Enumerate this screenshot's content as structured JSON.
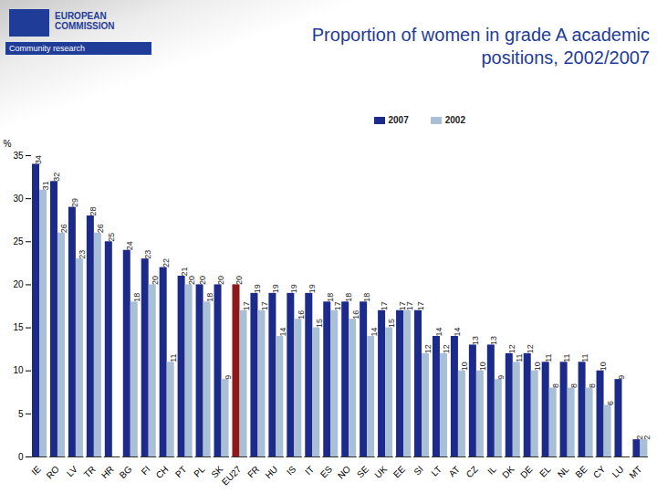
{
  "logo_text": [
    "EUROPEAN COMMISSION",
    "Community research"
  ],
  "chart_data": {
    "type": "bar",
    "title": "Proportion of women in grade A academic positions, 2002/2007",
    "y_label": "%",
    "categories": [
      "IE",
      "RO",
      "LV",
      "TR",
      "HR",
      "BG",
      "FI",
      "CH",
      "PT",
      "PL",
      "SK",
      "EU27",
      "FR",
      "HU",
      "IS",
      "IT",
      "ES",
      "NO",
      "SE",
      "UK",
      "EE",
      "SI",
      "LT",
      "AT",
      "CZ",
      "IL",
      "DK",
      "DE",
      "EL",
      "NL",
      "BE",
      "CY",
      "LU",
      "MT"
    ],
    "series": [
      {
        "name": "2007",
        "color": "#1c2a8a",
        "colors": [
          "#1c2a8a",
          "#1c2a8a",
          "#1c2a8a",
          "#1c2a8a",
          "#1c2a8a",
          "#1c2a8a",
          "#1c2a8a",
          "#1c2a8a",
          "#1c2a8a",
          "#1c2a8a",
          "#1c2a8a",
          "#8b1a1a",
          "#1c2a8a",
          "#1c2a8a",
          "#1c2a8a",
          "#1c2a8a",
          "#1c2a8a",
          "#1c2a8a",
          "#1c2a8a",
          "#1c2a8a",
          "#1c2a8a",
          "#1c2a8a",
          "#1c2a8a",
          "#1c2a8a",
          "#1c2a8a",
          "#1c2a8a",
          "#1c2a8a",
          "#1c2a8a",
          "#1c2a8a",
          "#1c2a8a",
          "#1c2a8a",
          "#1c2a8a",
          "#1c2a8a",
          "#1c2a8a"
        ],
        "values": [
          34,
          32,
          29,
          28,
          25,
          24,
          23,
          22,
          21,
          20,
          20,
          20,
          19,
          19,
          19,
          19,
          18,
          18,
          18,
          17,
          17,
          17,
          14,
          14,
          13,
          13,
          12,
          12,
          11,
          11,
          11,
          10,
          9,
          2
        ]
      },
      {
        "name": "2002",
        "color": "#a9bfd6",
        "values": [
          31,
          26,
          23,
          26,
          null,
          18,
          20,
          11,
          20,
          18,
          9,
          17,
          17,
          14,
          16,
          15,
          17,
          16,
          14,
          15,
          17,
          12,
          12,
          10,
          10,
          9,
          11,
          10,
          8,
          8,
          8,
          6,
          null,
          2
        ]
      }
    ],
    "ylim": [
      0,
      35
    ],
    "yticks": [
      0,
      5,
      10,
      15,
      20,
      25,
      30,
      35
    ],
    "grid": false,
    "legend": "top-right",
    "data_labels": true
  }
}
